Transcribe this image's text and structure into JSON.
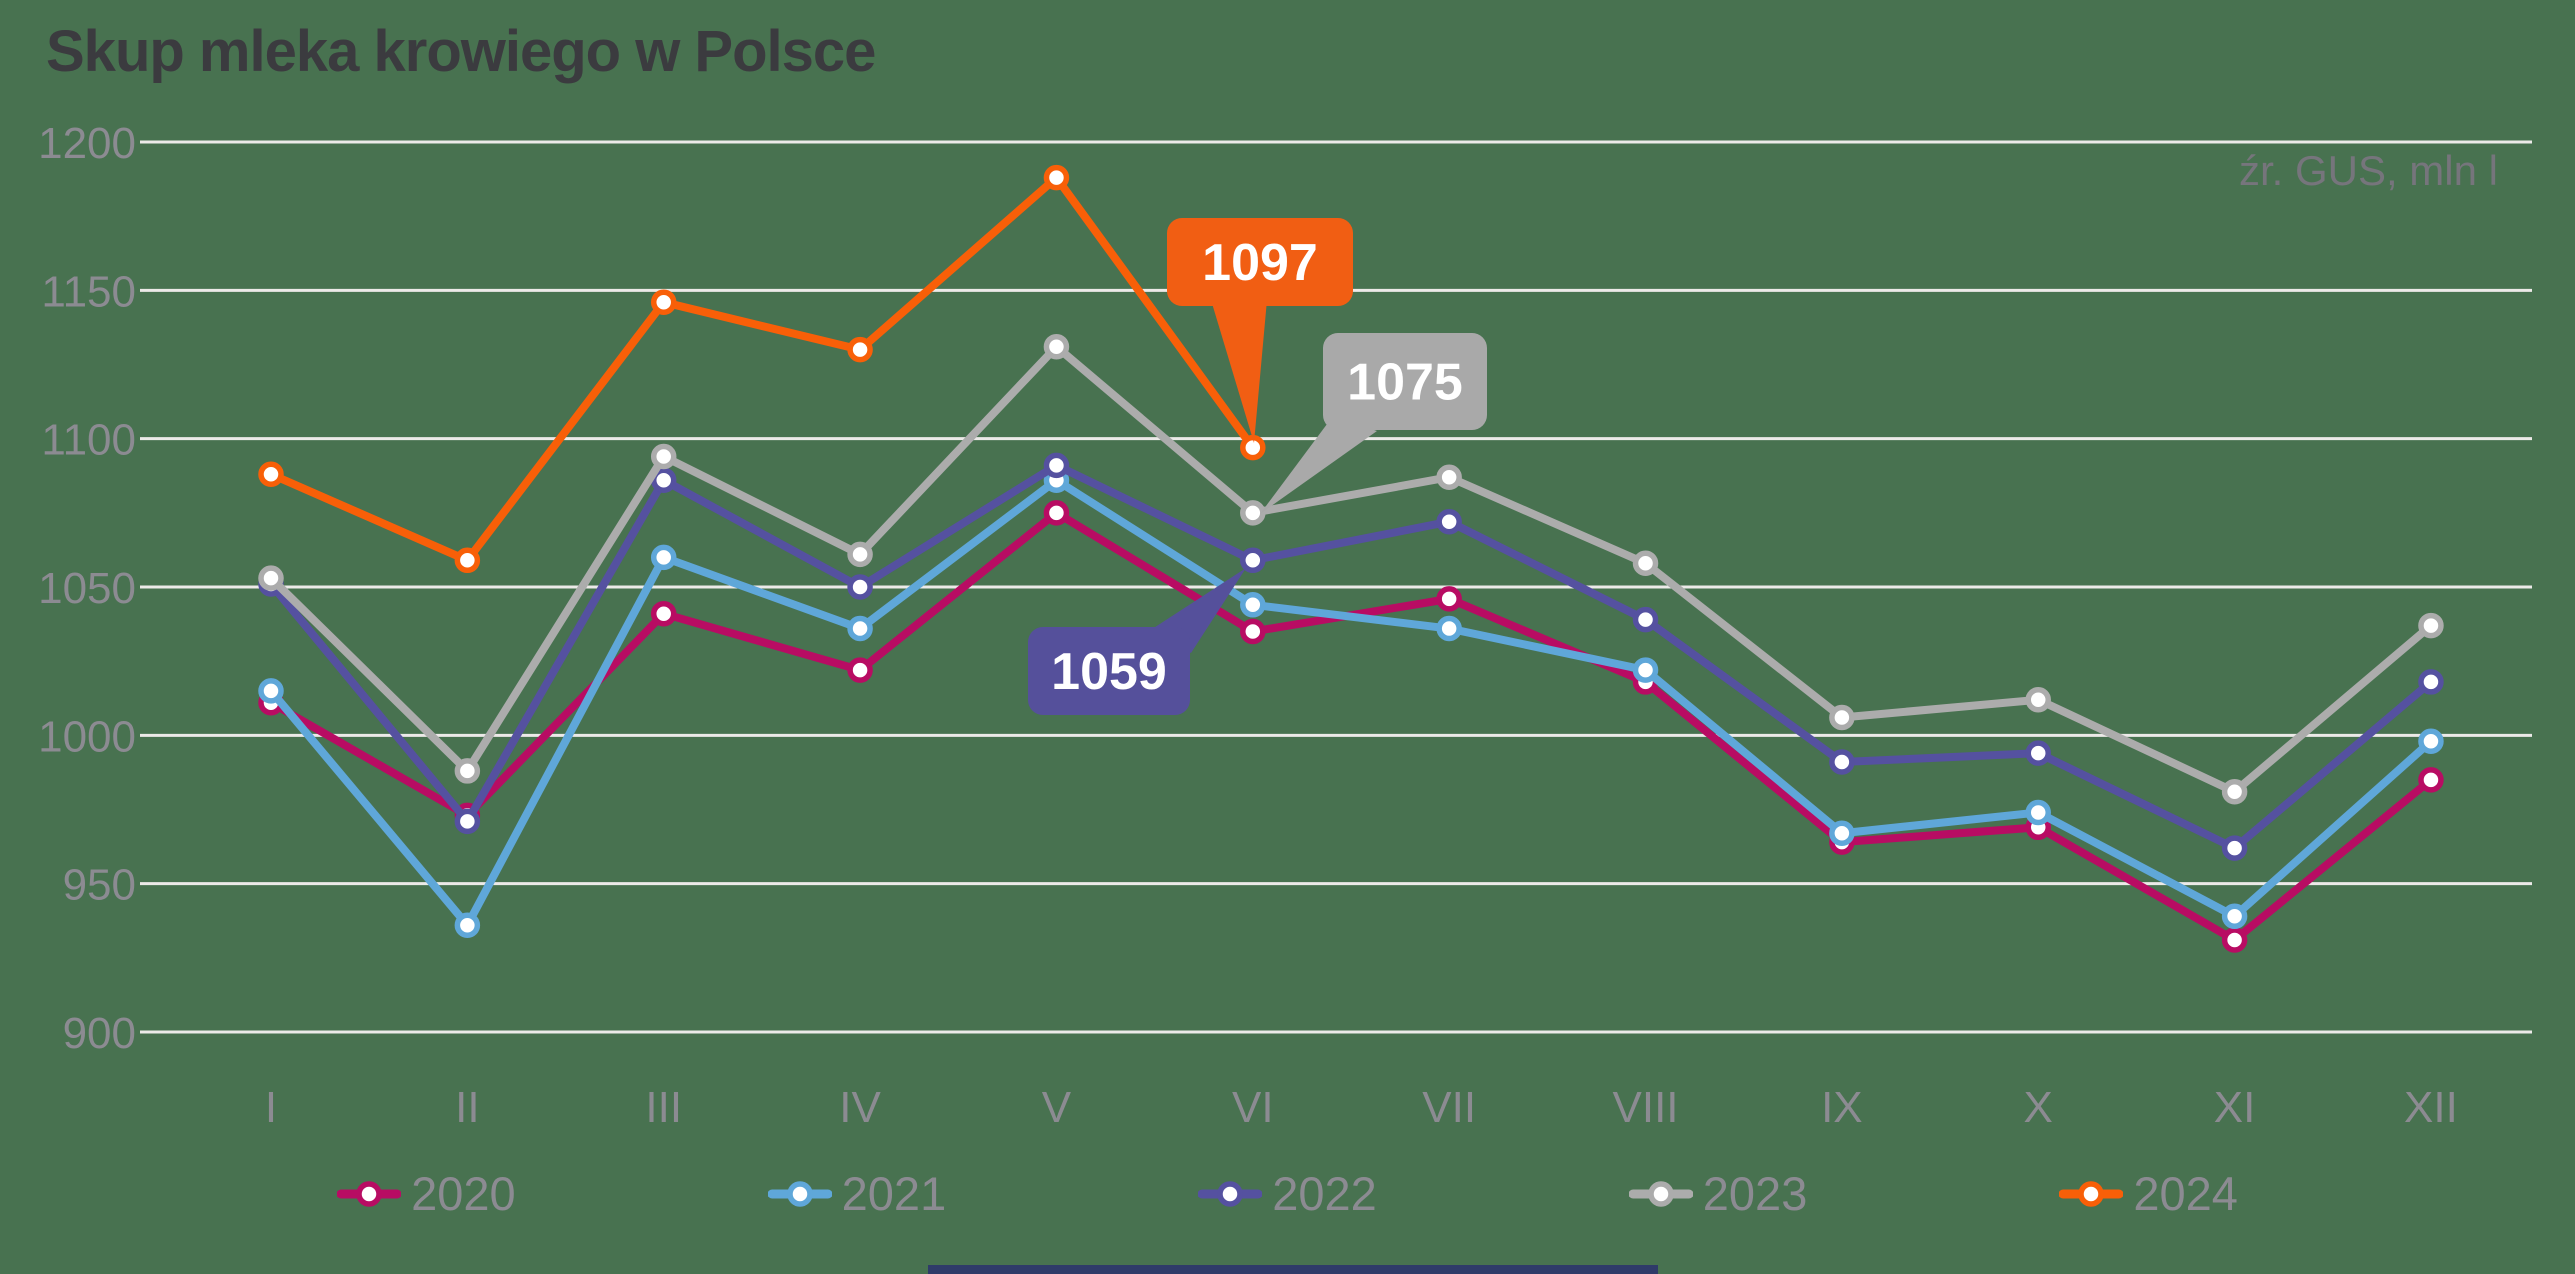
{
  "source_note": "źr. GUS, mln l",
  "chart_data": {
    "type": "line",
    "title": "Skup mleka krowiego w Polsce",
    "unit_note": "źr. GUS, mln l",
    "xlabel": "",
    "ylabel": "",
    "ylim": [
      900,
      1200
    ],
    "y_ticks": [
      900,
      950,
      1000,
      1050,
      1100,
      1150,
      1200
    ],
    "grid": "horizontal",
    "legend_position": "bottom",
    "x_categories": [
      "I",
      "II",
      "III",
      "IV",
      "V",
      "VI",
      "VII",
      "VIII",
      "IX",
      "X",
      "XI",
      "XII"
    ],
    "series": [
      {
        "name": "2020",
        "color": "#B80C63",
        "values": [
          1011,
          973,
          1041,
          1022,
          1075,
          1035,
          1046,
          1018,
          964,
          969,
          931,
          985
        ]
      },
      {
        "name": "2021",
        "color": "#5FA7D9",
        "values": [
          1015,
          936,
          1060,
          1036,
          1086,
          1044,
          1036,
          1022,
          967,
          974,
          939,
          998
        ]
      },
      {
        "name": "2022",
        "color": "#5551A0",
        "values": [
          1051,
          971,
          1086,
          1050,
          1091,
          1059,
          1072,
          1039,
          991,
          994,
          962,
          1018
        ]
      },
      {
        "name": "2023",
        "color": "#ACACAC",
        "values": [
          1053,
          988,
          1094,
          1061,
          1131,
          1075,
          1087,
          1058,
          1006,
          1012,
          981,
          1037
        ]
      },
      {
        "name": "2024",
        "color": "#F85F08",
        "values": [
          1088,
          1059,
          1146,
          1130,
          1188,
          1097
        ]
      }
    ],
    "annotations": [
      {
        "label": "1097",
        "series": "2024",
        "month": "VI",
        "value": 1097,
        "color": "#F15E13",
        "text_color": "#FFFFFF"
      },
      {
        "label": "1075",
        "series": "2023",
        "month": "VI",
        "value": 1075,
        "color": "#A9A9A9",
        "text_color": "#FFFFFF"
      },
      {
        "label": "1059",
        "series": "2022",
        "month": "VI",
        "value": 1059,
        "color": "#55509B",
        "text_color": "#FFFFFF"
      }
    ],
    "axis_text_color": "#8C8B92",
    "gridline_color": "#ECEAE8",
    "marker_fill": "#FFFFFF"
  }
}
